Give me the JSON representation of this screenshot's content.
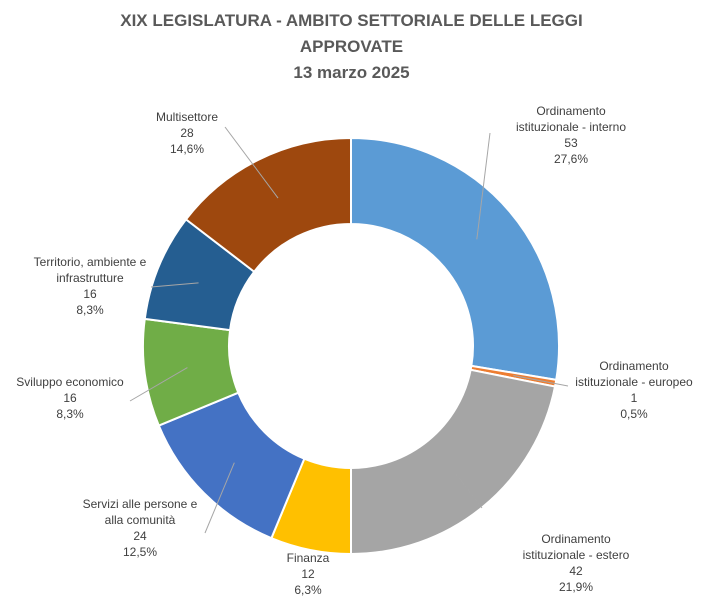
{
  "chart_data": {
    "type": "pie",
    "style": "donut",
    "title": [
      "XIX LEGISLATURA - AMBITO SETTORIALE DELLE LEGGI",
      "APPROVATE",
      "13 marzo 2025"
    ],
    "slices": [
      {
        "label": [
          "Ordinamento",
          "istituzionale - interno"
        ],
        "value": 53,
        "percent_label": "27,6%",
        "color": "#5B9BD5"
      },
      {
        "label": [
          "Ordinamento",
          "istituzionale - europeo"
        ],
        "value": 1,
        "percent_label": "0,5%",
        "color": "#ED7D31"
      },
      {
        "label": [
          "Ordinamento",
          "istituzionale - estero"
        ],
        "value": 42,
        "percent_label": "21,9%",
        "color": "#A5A5A5"
      },
      {
        "label": [
          "Finanza"
        ],
        "value": 12,
        "percent_label": "6,3%",
        "color": "#FFC000"
      },
      {
        "label": [
          "Servizi alle persone e",
          "alla comunità"
        ],
        "value": 24,
        "percent_label": "12,5%",
        "color": "#4472C4"
      },
      {
        "label": [
          "Sviluppo economico"
        ],
        "value": 16,
        "percent_label": "8,3%",
        "color": "#70AD47"
      },
      {
        "label": [
          "Territorio, ambiente e",
          "infrastrutture"
        ],
        "value": 16,
        "percent_label": "8,3%",
        "color": "#255E91"
      },
      {
        "label": [
          "Multisettore"
        ],
        "value": 28,
        "percent_label": "14,6%",
        "color": "#9E480E"
      }
    ],
    "legend": "none"
  }
}
